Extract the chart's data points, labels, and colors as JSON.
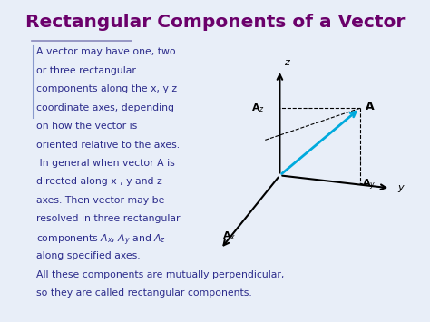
{
  "title": "Rectangular Components of a Vector",
  "title_color": "#6B006B",
  "bg_color": "#E8EEF8",
  "body_text_color": "#2B2B8B",
  "body_text": [
    "A vector may have one, two",
    "or three rectangular",
    "components along the x, y z",
    "coordinate axes, depending",
    "on how the vector is",
    "oriented relative to the axes.",
    " In general when vector A is",
    "directed along x , y and z",
    "axes. Then vector may be",
    "resolved in three rectangular"
  ],
  "body_text3": "along specified axes.",
  "body_text4": "All these components are mutually perpendicular,",
  "body_text5": "so they are called rectangular components.",
  "ox": 0.67,
  "oy": 0.455,
  "axis_color": "#000000",
  "vector_color": "#00AADD",
  "label_color": "#000000",
  "line_color": "#8888BB",
  "bar_color": "#8899CC"
}
